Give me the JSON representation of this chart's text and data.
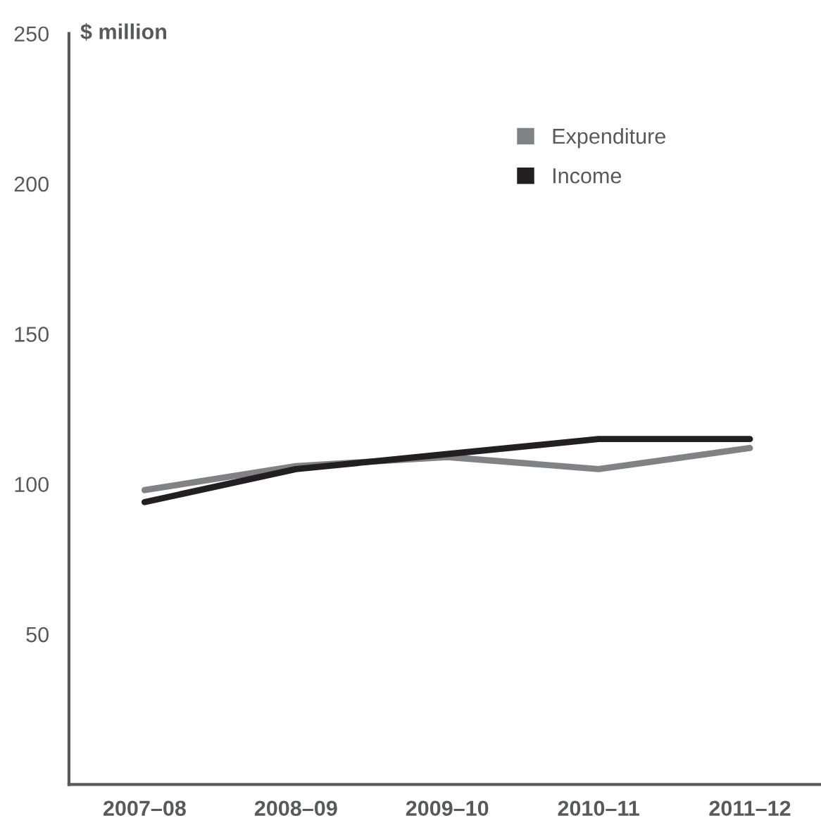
{
  "chart_data": {
    "type": "line",
    "ylabel": "$ million",
    "categories": [
      "2007–08",
      "2008–09",
      "2009–10",
      "2010–11",
      "2011–12"
    ],
    "series": [
      {
        "name": "Expenditure",
        "color": "#808285",
        "values": [
          98,
          106,
          109,
          105,
          112
        ]
      },
      {
        "name": "Income",
        "color": "#231f20",
        "values": [
          94,
          105,
          110,
          115,
          115
        ]
      }
    ],
    "ylim": [
      0,
      250
    ],
    "yticks": [
      50,
      100,
      150,
      200,
      250
    ],
    "grid": false,
    "legend": "top right",
    "marker": "none",
    "line_style": "solid"
  }
}
